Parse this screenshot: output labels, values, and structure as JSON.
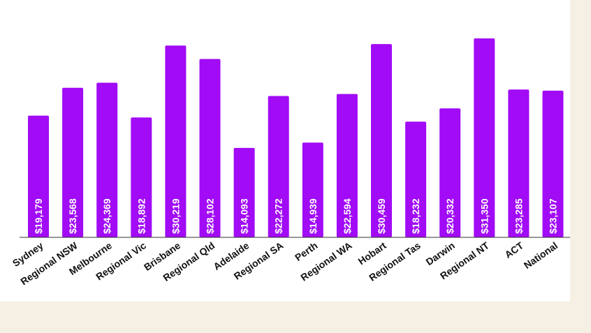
{
  "chart_data": {
    "type": "bar",
    "title": "",
    "xlabel": "",
    "ylabel": "",
    "categories": [
      "Sydney",
      "Regional NSW",
      "Melbourne",
      "Regional Vic",
      "Brisbane",
      "Regional Qld",
      "Adelaide",
      "Regional SA",
      "Perth",
      "Regional WA",
      "Hobart",
      "Regional Tas",
      "Darwin",
      "Regional NT",
      "ACT",
      "National"
    ],
    "values": [
      19179,
      23568,
      24369,
      18892,
      30219,
      28102,
      14093,
      22272,
      14939,
      22594,
      30459,
      18232,
      20332,
      31350,
      23285,
      23107
    ],
    "data_labels": [
      "$19,179",
      "$23,568",
      "$24,369",
      "$18,892",
      "$30,219",
      "$28,102",
      "$14,093",
      "$22,272",
      "$14,939",
      "$22,594",
      "$30,459",
      "$18,232",
      "$20,332",
      "$31,350",
      "$23,285",
      "$23,107"
    ],
    "ylim": [
      0,
      33000
    ],
    "grid": false,
    "legend": "none",
    "colors": {
      "bar": "#a10bf5",
      "baseline": "#333333",
      "panel": "#ffffff",
      "page": "#f6efe3"
    }
  }
}
